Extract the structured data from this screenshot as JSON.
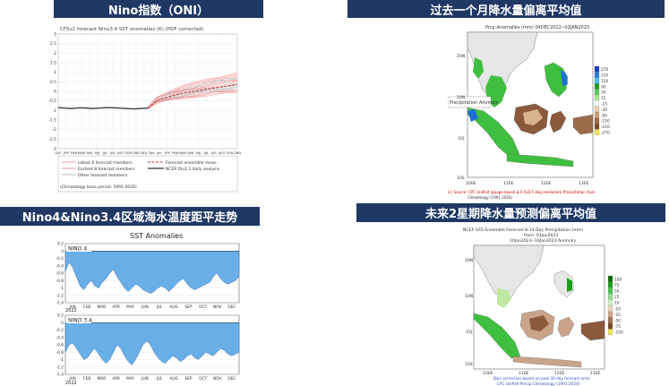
{
  "headers": {
    "oni": "Nino指数（ONI）",
    "precip_past": "过去一个月降水量偏离平均值",
    "nino_trend": "Nino4&Nino3.4区域海水温度距平走势",
    "precip_forecast": "未来2星期降水量预测偏离平均值"
  },
  "oni_chart": {
    "title": "CFSv2 forecast Nino3.4 SST anomalies (K) (PDF corrected)",
    "y_ticks": [
      "3",
      "2.5",
      "2",
      "1.5",
      "1",
      "0.5",
      "0",
      "-0.5",
      "-1",
      "-1.5",
      "-2",
      "-2.5",
      "-3"
    ],
    "x_ticks": [
      "SUF",
      "JFM",
      "FMA",
      "MAM",
      "AMJ",
      "MJJ",
      "JJA",
      "JAS",
      "ASO",
      "SON",
      "OND",
      "NDJ",
      "Dec",
      "Jan",
      "JFM",
      "FMA",
      "MAM",
      "AMJ",
      "MJJ",
      "JJA",
      "JAS",
      "ASO",
      "SON",
      "OND"
    ],
    "legend": [
      "Latest 8 forecast members",
      "Earliest 8 forecast members",
      "Other forecast members",
      "Forecast ensemble mean",
      "NCEP OIv2.1 daily analysis"
    ],
    "note": "(Climatology base period: 1991-2020)",
    "observed_series": [
      -0.85,
      -0.88,
      -0.9,
      -0.86,
      -0.87,
      -0.9,
      -0.88,
      -0.85,
      -0.86,
      -0.88,
      -0.9,
      -0.92,
      -0.9,
      -0.88
    ]
  },
  "precip_past_map": {
    "title": "Prcp Anomalies (mm) 04DEC2022--02JAN2023",
    "tooltip": "Precipitation Anomaly",
    "legend": [
      "270",
      "210",
      "150",
      "90",
      "30",
      "15",
      "-15",
      "-30",
      "-90",
      "-150",
      "-210",
      "-270"
    ],
    "lat_labels": [
      "20N",
      "10N",
      "EQ",
      "10S"
    ],
    "lon_labels": [
      "100E",
      "110E",
      "120E",
      "130E"
    ],
    "source_line1": "(c) Source: CPC Unified (gauge-based & 0.5x0.5 deg resolution) Precipitation Anal",
    "source_line2": "Climatology (1991-2020)"
  },
  "sst_chart": {
    "title": "SST Anomalies",
    "panel1_label": "NINO 4",
    "panel2_label": "NINO 3.4",
    "y_ticks": [
      "0.2",
      "0",
      "-0.2",
      "-0.4",
      "-0.6",
      "-0.8",
      "-1",
      "-1.2",
      "-1.4"
    ],
    "months": [
      "JAN",
      "FEB",
      "MAR",
      "APR",
      "MAY",
      "JUN",
      "JUL",
      "AUG",
      "SEP",
      "OCT",
      "NOV",
      "DEC"
    ],
    "year": "2022",
    "nino4_series": [
      -0.55,
      -0.3,
      -0.45,
      -0.7,
      -0.95,
      -1.05,
      -0.9,
      -0.8,
      -0.95,
      -1.0,
      -0.85,
      -0.75,
      -0.6,
      -0.5,
      -0.7,
      -0.85,
      -1.0,
      -1.1,
      -1.0,
      -0.9,
      -0.95,
      -1.05,
      -1.1,
      -1.15,
      -1.1,
      -1.0,
      -0.95,
      -1.0,
      -1.1,
      -1.0,
      -0.9,
      -0.8,
      -0.75,
      -0.9,
      -1.0,
      -1.05,
      -1.0,
      -0.95,
      -0.9,
      -0.85,
      -0.7,
      -0.6,
      -0.75,
      -0.85,
      -0.9,
      -0.85,
      -0.8,
      -0.7
    ],
    "nino34_series": [
      -0.8,
      -0.6,
      -0.55,
      -0.7,
      -0.85,
      -1.0,
      -0.95,
      -0.8,
      -0.7,
      -0.85,
      -1.0,
      -1.1,
      -1.0,
      -0.8,
      -0.6,
      -0.7,
      -0.9,
      -1.05,
      -1.15,
      -1.0,
      -0.8,
      -0.6,
      -0.5,
      -0.6,
      -0.8,
      -0.95,
      -1.05,
      -1.1,
      -1.0,
      -0.9,
      -0.95,
      -1.05,
      -1.0,
      -0.9,
      -0.85,
      -0.95,
      -1.0,
      -0.9,
      -0.8,
      -0.85,
      -0.9,
      -0.8,
      -0.7,
      -0.75,
      -0.85,
      -0.9,
      -0.85,
      -0.8
    ]
  },
  "precip_forecast_map": {
    "title_line1": "NCEP GFS Ensemble Forecast 8-14 Day Precipitation (mm)",
    "title_line2": "from: 03Jan2023",
    "title_line3": "10Jan2023--16Jan2023 Anomaly",
    "legend": [
      "100",
      "75",
      "50",
      "25",
      "10",
      "-10",
      "-25",
      "-50",
      "-75",
      "-100"
    ],
    "lat_labels": [
      "20N",
      "10N",
      "EQ",
      "10S"
    ],
    "lon_labels": [
      "100E",
      "110E",
      "120E",
      "130E"
    ],
    "footer_line1": "Bias correction based on past 30-day forecast error",
    "footer_line2": "CPC Unified Precip Climatology (1991-2020)"
  },
  "colors": {
    "header_bg": "#1f3864",
    "sst_fill": "#6aaee8",
    "land_green": "#3fbf3f",
    "land_brown": "#8b5a3c",
    "land_tan": "#d9b38c",
    "land_gray": "#dcdcdc"
  }
}
